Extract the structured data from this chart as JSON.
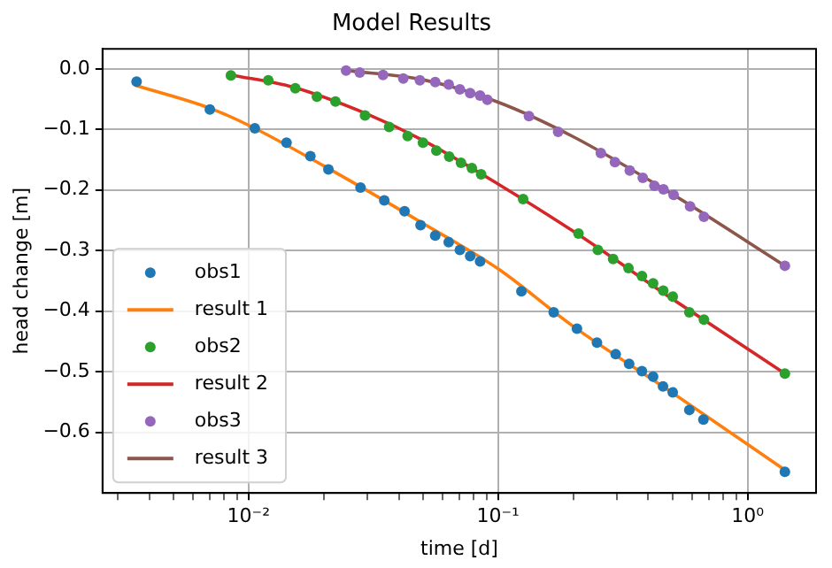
{
  "chart_data": {
    "type": "scatter",
    "title": "Model Results",
    "xlabel": "time [d]",
    "ylabel": "head change [m]",
    "log": "x",
    "grid": true,
    "legend": "bottom left",
    "xlim": [
      0.0026,
      1.88
    ],
    "ylim": [
      -0.7,
      0.033
    ],
    "xticks": [
      {
        "value": 0.003,
        "label": null
      },
      {
        "value": 0.004,
        "label": null
      },
      {
        "value": 0.005,
        "label": null
      },
      {
        "value": 0.006,
        "label": null
      },
      {
        "value": 0.007,
        "label": null
      },
      {
        "value": 0.008,
        "label": null
      },
      {
        "value": 0.009,
        "label": null
      },
      {
        "value": 0.01,
        "label": "10⁻²"
      },
      {
        "value": 0.02,
        "label": null
      },
      {
        "value": 0.03,
        "label": null
      },
      {
        "value": 0.04,
        "label": null
      },
      {
        "value": 0.05,
        "label": null
      },
      {
        "value": 0.06,
        "label": null
      },
      {
        "value": 0.07,
        "label": null
      },
      {
        "value": 0.08,
        "label": null
      },
      {
        "value": 0.09,
        "label": null
      },
      {
        "value": 0.1,
        "label": "10⁻¹"
      },
      {
        "value": 0.2,
        "label": null
      },
      {
        "value": 0.3,
        "label": null
      },
      {
        "value": 0.4,
        "label": null
      },
      {
        "value": 0.5,
        "label": null
      },
      {
        "value": 0.6,
        "label": null
      },
      {
        "value": 0.7,
        "label": null
      },
      {
        "value": 0.8,
        "label": null
      },
      {
        "value": 0.9,
        "label": null
      },
      {
        "value": 1,
        "label": "10⁰"
      }
    ],
    "yticks": [
      {
        "value": 0,
        "label": "0.0"
      },
      {
        "value": -0.1,
        "label": "−0.1"
      },
      {
        "value": -0.2,
        "label": "−0.2"
      },
      {
        "value": -0.3,
        "label": "−0.3"
      },
      {
        "value": -0.4,
        "label": "−0.4"
      },
      {
        "value": -0.5,
        "label": "−0.5"
      },
      {
        "value": -0.6,
        "label": "−0.6"
      }
    ],
    "series": [
      {
        "name": "obs1",
        "type": "scatter",
        "marker": "circle",
        "color": "#1f77b4",
        "x": [
          0.00356,
          0.007,
          0.0106,
          0.0142,
          0.0177,
          0.0209,
          0.0281,
          0.035,
          0.0422,
          0.0489,
          0.056,
          0.0634,
          0.0703,
          0.0773,
          0.0847,
          0.124,
          0.167,
          0.207,
          0.249,
          0.296,
          0.335,
          0.377,
          0.418,
          0.458,
          0.501,
          0.584,
          0.665,
          1.41
        ],
        "values": [
          -0.021,
          -0.067,
          -0.098,
          -0.122,
          -0.144,
          -0.166,
          -0.196,
          -0.217,
          -0.235,
          -0.258,
          -0.275,
          -0.286,
          -0.299,
          -0.309,
          -0.318,
          -0.367,
          -0.402,
          -0.429,
          -0.452,
          -0.471,
          -0.487,
          -0.499,
          -0.508,
          -0.524,
          -0.534,
          -0.563,
          -0.579,
          -0.665
        ]
      },
      {
        "name": "result 1",
        "type": "line",
        "marker": "none",
        "color": "#ff7f0e",
        "x": [
          0.0035,
          0.007,
          0.01,
          0.02,
          0.05,
          0.1,
          0.2,
          0.5,
          1.41
        ],
        "values": [
          -0.027,
          -0.065,
          -0.093,
          -0.16,
          -0.255,
          -0.33,
          -0.425,
          -0.535,
          -0.662
        ]
      },
      {
        "name": "obs2",
        "type": "scatter",
        "marker": "circle",
        "color": "#2ca02c",
        "x": [
          0.0085,
          0.012,
          0.0154,
          0.0188,
          0.0223,
          0.0293,
          0.0366,
          0.0434,
          0.05,
          0.0566,
          0.0637,
          0.071,
          0.0785,
          0.0855,
          0.126,
          0.21,
          0.251,
          0.289,
          0.333,
          0.377,
          0.418,
          0.459,
          0.501,
          0.584,
          0.668,
          1.41
        ],
        "values": [
          -0.011,
          -0.019,
          -0.032,
          -0.046,
          -0.054,
          -0.077,
          -0.096,
          -0.111,
          -0.122,
          -0.135,
          -0.145,
          -0.155,
          -0.164,
          -0.174,
          -0.215,
          -0.272,
          -0.299,
          -0.314,
          -0.329,
          -0.342,
          -0.354,
          -0.366,
          -0.376,
          -0.402,
          -0.414,
          -0.503
        ]
      },
      {
        "name": "result 2",
        "type": "line",
        "marker": "none",
        "color": "#d62728",
        "x": [
          0.0085,
          0.015,
          0.03,
          0.05,
          0.1,
          0.2,
          0.5,
          1.41
        ],
        "values": [
          -0.01,
          -0.03,
          -0.075,
          -0.118,
          -0.19,
          -0.268,
          -0.38,
          -0.503
        ]
      },
      {
        "name": "obs3",
        "type": "scatter",
        "marker": "circle",
        "color": "#9467bd",
        "x": [
          0.0246,
          0.0279,
          0.0346,
          0.0417,
          0.0486,
          0.056,
          0.0634,
          0.0703,
          0.0773,
          0.0847,
          0.0906,
          0.133,
          0.174,
          0.258,
          0.294,
          0.337,
          0.38,
          0.423,
          0.46,
          0.505,
          0.588,
          0.668,
          1.41
        ],
        "values": [
          -0.003,
          -0.006,
          -0.01,
          -0.016,
          -0.019,
          -0.022,
          -0.026,
          -0.034,
          -0.04,
          -0.044,
          -0.051,
          -0.078,
          -0.104,
          -0.139,
          -0.154,
          -0.168,
          -0.18,
          -0.193,
          -0.199,
          -0.208,
          -0.227,
          -0.244,
          -0.325
        ]
      },
      {
        "name": "result 3",
        "type": "line",
        "marker": "none",
        "color": "#8c564b",
        "x": [
          0.025,
          0.05,
          0.1,
          0.2,
          0.5,
          1.41
        ],
        "values": [
          -0.003,
          -0.018,
          -0.055,
          -0.112,
          -0.207,
          -0.325
        ]
      }
    ]
  }
}
